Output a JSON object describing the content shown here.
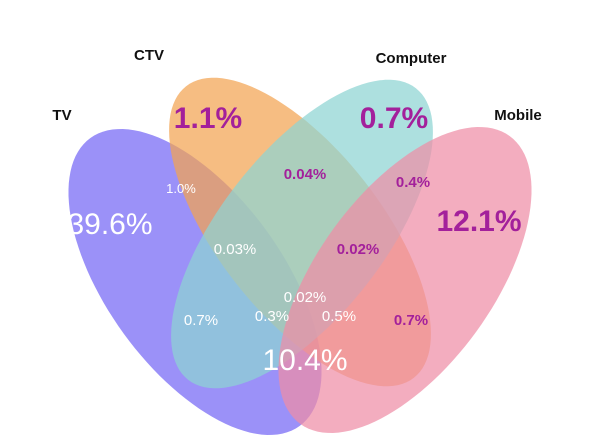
{
  "sets": [
    {
      "name": "TV",
      "color": "#7466f5"
    },
    {
      "name": "CTV",
      "color": "#f3a452"
    },
    {
      "name": "Computer",
      "color": "#8ed4d2"
    },
    {
      "name": "Mobile",
      "color": "#ef8ea6"
    }
  ],
  "text_colors": {
    "white": "#ffffff",
    "magenta": "#a3209b"
  },
  "regions": [
    {
      "sets": [
        "TV"
      ],
      "label": "39.6%"
    },
    {
      "sets": [
        "CTV"
      ],
      "label": "1.1%"
    },
    {
      "sets": [
        "Computer"
      ],
      "label": "0.7%"
    },
    {
      "sets": [
        "Mobile"
      ],
      "label": "12.1%"
    },
    {
      "sets": [
        "TV",
        "CTV"
      ],
      "label": "1.0%"
    },
    {
      "sets": [
        "CTV",
        "Computer"
      ],
      "label": "0.04%"
    },
    {
      "sets": [
        "Computer",
        "Mobile"
      ],
      "label": "0.4%"
    },
    {
      "sets": [
        "TV",
        "CTV",
        "Computer"
      ],
      "label": "0.03%"
    },
    {
      "sets": [
        "CTV",
        "Computer",
        "Mobile"
      ],
      "label": "0.02%"
    },
    {
      "sets": [
        "TV",
        "CTV",
        "Computer",
        "Mobile"
      ],
      "label": "0.02%"
    },
    {
      "sets": [
        "TV",
        "Computer"
      ],
      "label": "0.7%"
    },
    {
      "sets": [
        "TV",
        "Computer",
        "Mobile"
      ],
      "label": "0.3%"
    },
    {
      "sets": [
        "TV",
        "CTV",
        "Mobile"
      ],
      "label": "0.5%"
    },
    {
      "sets": [
        "CTV",
        "Mobile"
      ],
      "label": "0.7%"
    },
    {
      "sets": [
        "TV",
        "Mobile"
      ],
      "label": "10.4%"
    }
  ]
}
